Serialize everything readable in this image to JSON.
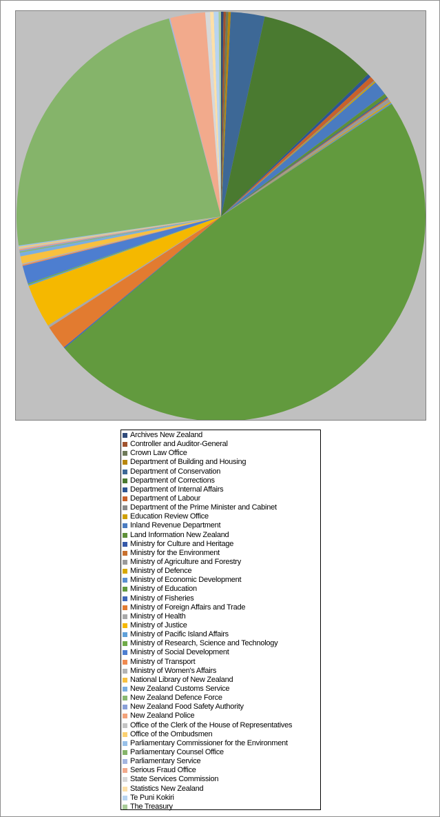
{
  "chart_data": {
    "type": "pie",
    "title": "",
    "legend_position": "bottom",
    "start_angle_deg": 0,
    "direction": "clockwise",
    "series": [
      {
        "name": "Archives New Zealand",
        "value": 0.2,
        "color": "#2f4a7a"
      },
      {
        "name": "Controller and Auditor-General",
        "value": 0.2,
        "color": "#a0522d"
      },
      {
        "name": "Crown Law Office",
        "value": 0.2,
        "color": "#6e7a58"
      },
      {
        "name": "Department of Building and Housing",
        "value": 0.2,
        "color": "#b8860b"
      },
      {
        "name": "Department of Conservation",
        "value": 2.8,
        "color": "#3d6896"
      },
      {
        "name": "Department of Corrections",
        "value": 9.8,
        "color": "#4a7a30"
      },
      {
        "name": "Department of Internal Affairs",
        "value": 0.3,
        "color": "#2e5592"
      },
      {
        "name": "Department of Labour",
        "value": 0.4,
        "color": "#c8612a"
      },
      {
        "name": "Department of the Prime Minister and Cabinet",
        "value": 0.1,
        "color": "#8a8a8a"
      },
      {
        "name": "Education Review Office",
        "value": 0.1,
        "color": "#cfa000"
      },
      {
        "name": "Inland Revenue Department",
        "value": 1.2,
        "color": "#4a7bc0"
      },
      {
        "name": "Land Information New Zealand",
        "value": 0.3,
        "color": "#5e8f38"
      },
      {
        "name": "Ministry for Culture and Heritage",
        "value": 0.1,
        "color": "#3558a8"
      },
      {
        "name": "Ministry for the Environment",
        "value": 0.1,
        "color": "#c8702e"
      },
      {
        "name": "Ministry of Agriculture and Forestry",
        "value": 0.3,
        "color": "#9a9a9a"
      },
      {
        "name": "Ministry of Defence",
        "value": 0.1,
        "color": "#d8a800"
      },
      {
        "name": "Ministry of Economic Development",
        "value": 0.1,
        "color": "#5b8fcf"
      },
      {
        "name": "Ministry of Education",
        "value": 50.5,
        "color": "#629a3e"
      },
      {
        "name": "Ministry of Fisheries",
        "value": 0.1,
        "color": "#4168b8"
      },
      {
        "name": "Ministry of Foreign Affairs and Trade",
        "value": 2.0,
        "color": "#e27b30"
      },
      {
        "name": "Ministry of Health",
        "value": 0.2,
        "color": "#a8a8a8"
      },
      {
        "name": "Ministry of Justice",
        "value": 3.6,
        "color": "#f5b800"
      },
      {
        "name": "Ministry of Pacific Island Affairs",
        "value": 0.1,
        "color": "#5fa0d8"
      },
      {
        "name": "Ministry of Research, Science and Technology",
        "value": 0.1,
        "color": "#70aa48"
      },
      {
        "name": "Ministry of Social Development",
        "value": 1.5,
        "color": "#4d7ed0"
      },
      {
        "name": "Ministry of Transport",
        "value": 0.1,
        "color": "#f08a50"
      },
      {
        "name": "Ministry of Women's Affairs",
        "value": 0.1,
        "color": "#b4b4b4"
      },
      {
        "name": "National Library of New Zealand",
        "value": 0.6,
        "color": "#f8c040"
      },
      {
        "name": "New Zealand Customs Service",
        "value": 0.3,
        "color": "#7aaee0"
      },
      {
        "name": "New Zealand Defence Force",
        "value": 0.1,
        "color": "#88b870"
      },
      {
        "name": "New Zealand Food Safety Authority",
        "value": 0.1,
        "color": "#8aa0d8"
      },
      {
        "name": "New Zealand Police",
        "value": 0.1,
        "color": "#f3a27a"
      },
      {
        "name": "Office of the Clerk of the House of Representatives",
        "value": 0.1,
        "color": "#c4c4c4"
      },
      {
        "name": "Office of the Ombudsmen",
        "value": 0.1,
        "color": "#fbd070"
      },
      {
        "name": "Parliamentary Commissioner for the Environment",
        "value": 0.1,
        "color": "#98c0e8"
      },
      {
        "name": "Parliamentary Counsel Office",
        "value": 24.3,
        "color": "#85b46a"
      },
      {
        "name": "Parliamentary Service",
        "value": 0.1,
        "color": "#a4b6e0"
      },
      {
        "name": "Serious Fraud Office",
        "value": 2.9,
        "color": "#f2aa8c"
      },
      {
        "name": "State Services Commission",
        "value": 0.4,
        "color": "#d8d8d8"
      },
      {
        "name": "Statistics New Zealand",
        "value": 0.3,
        "color": "#fde0a8"
      },
      {
        "name": "Te Puni Kokiri",
        "value": 0.4,
        "color": "#b8d4f0"
      },
      {
        "name": "The Treasury",
        "value": 0.2,
        "color": "#a8cc98"
      }
    ]
  }
}
